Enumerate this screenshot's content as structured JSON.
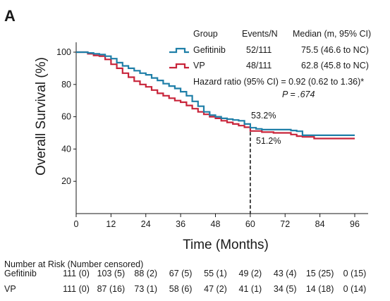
{
  "panel_label": "A",
  "chart_data": {
    "type": "line",
    "subtype": "kaplan-meier",
    "ylabel": "Overall Survival (%)",
    "xlabel": "Time (Months)",
    "xlim": [
      0,
      96
    ],
    "ylim": [
      0,
      100
    ],
    "xticks": [
      0,
      12,
      24,
      36,
      48,
      60,
      72,
      84,
      96
    ],
    "xtick_labels": [
      "0",
      "12",
      "24",
      "36",
      "48",
      "60",
      "72",
      "84",
      "96"
    ],
    "yticks": [
      20,
      40,
      60,
      80,
      100
    ],
    "ytick_labels": [
      "20",
      "40",
      "60",
      "80",
      "100"
    ],
    "grid": false,
    "legend": {
      "placement": "top-right",
      "headers": {
        "group": "Group",
        "events": "Events/N",
        "median": "Median (m, 95% CI)"
      },
      "rows": [
        {
          "name": "Gefitinib",
          "events": "52/111",
          "median": "75.5 (46.6 to NC)",
          "color": "#1f7fa8"
        },
        {
          "name": "VP",
          "events": "48/111",
          "median": "62.8 (45.8 to NC)",
          "color": "#c8243a"
        }
      ]
    },
    "hazard_text": "Hazard ratio (95% CI) = 0.92 (0.62 to 1.36)*",
    "p_text": "P = .674",
    "annotations": [
      {
        "text": "53.2%",
        "x": 60,
        "y": 53.2
      },
      {
        "text": "51.2%",
        "x": 60,
        "y": 51.2
      }
    ],
    "reference_line": {
      "x": 60,
      "style": "dashed"
    },
    "series": [
      {
        "name": "Gefitinib",
        "color": "#1f7fa8",
        "x": [
          0,
          2,
          4,
          6,
          8,
          10,
          12,
          14,
          16,
          18,
          20,
          22,
          24,
          26,
          28,
          30,
          32,
          34,
          36,
          38,
          40,
          42,
          44,
          46,
          48,
          50,
          52,
          54,
          56,
          58,
          60,
          62,
          64,
          66,
          68,
          70,
          72,
          74,
          76,
          78,
          80,
          82,
          84,
          86,
          88,
          90,
          92,
          94,
          96
        ],
        "y": [
          100,
          100,
          99.5,
          99,
          98.5,
          97.5,
          96,
          93.5,
          91.5,
          90,
          88.5,
          87,
          86,
          84,
          82.5,
          80.5,
          79,
          77.5,
          75.5,
          73,
          69.5,
          66.5,
          63,
          61,
          60,
          59,
          58.5,
          58,
          57.5,
          55.5,
          53.2,
          52.5,
          52,
          52,
          52,
          52,
          52,
          51.5,
          51,
          48.5,
          48.5,
          48.5,
          48.5,
          48.5,
          48.5,
          48.5,
          48.5,
          48.5,
          48.5
        ]
      },
      {
        "name": "VP",
        "color": "#c8243a",
        "x": [
          0,
          2,
          4,
          6,
          8,
          10,
          12,
          14,
          16,
          18,
          20,
          22,
          24,
          26,
          28,
          30,
          32,
          34,
          36,
          38,
          40,
          42,
          44,
          46,
          48,
          50,
          52,
          54,
          56,
          58,
          60,
          62,
          64,
          66,
          68,
          70,
          72,
          74,
          76,
          78,
          80,
          82,
          84,
          86,
          88,
          90,
          92,
          94,
          96
        ],
        "y": [
          100,
          100,
          99,
          98,
          97.5,
          95.5,
          92.5,
          90,
          87,
          84.5,
          82,
          80,
          78.5,
          76.5,
          74.5,
          73,
          71.5,
          70,
          69,
          67,
          65,
          63,
          61.5,
          60,
          59,
          57.5,
          56.5,
          55.5,
          54.5,
          53.5,
          51.2,
          51.2,
          50.5,
          50.5,
          50,
          50,
          50,
          49,
          48,
          47.5,
          47.5,
          46.5,
          46.5,
          46.5,
          46.5,
          46.5,
          46.5,
          46.5,
          46.5
        ]
      }
    ]
  },
  "risk_table": {
    "title": "Number at Risk  (Number censored)",
    "rows": [
      {
        "name": "Gefitinib",
        "cells": [
          "111 (0)",
          "103 (5)",
          "88 (2)",
          "67 (5)",
          "55 (1)",
          "49 (2)",
          "43 (4)",
          "15 (25)",
          "0 (15)"
        ]
      },
      {
        "name": "VP",
        "cells": [
          "111 (0)",
          "87 (16)",
          "73 (1)",
          "58 (6)",
          "47 (2)",
          "41 (1)",
          "34 (5)",
          "14 (18)",
          "0 (14)"
        ]
      }
    ]
  }
}
